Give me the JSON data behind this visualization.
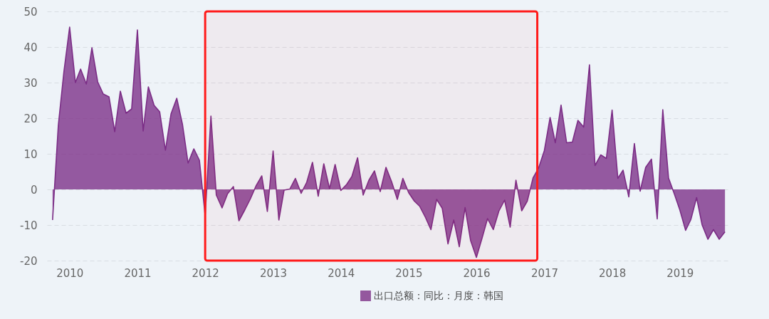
{
  "chart_data": {
    "type": "area",
    "x": [
      "2009-10",
      "2009-11",
      "2009-12",
      "2010-01",
      "2010-02",
      "2010-03",
      "2010-04",
      "2010-05",
      "2010-06",
      "2010-07",
      "2010-08",
      "2010-09",
      "2010-10",
      "2010-11",
      "2010-12",
      "2011-01",
      "2011-02",
      "2011-03",
      "2011-04",
      "2011-05",
      "2011-06",
      "2011-07",
      "2011-08",
      "2011-09",
      "2011-10",
      "2011-11",
      "2011-12",
      "2012-01",
      "2012-02",
      "2012-03",
      "2012-04",
      "2012-05",
      "2012-06",
      "2012-07",
      "2012-08",
      "2012-09",
      "2012-10",
      "2012-11",
      "2012-12",
      "2013-01",
      "2013-02",
      "2013-03",
      "2013-04",
      "2013-05",
      "2013-06",
      "2013-07",
      "2013-08",
      "2013-09",
      "2013-10",
      "2013-11",
      "2013-12",
      "2014-01",
      "2014-02",
      "2014-03",
      "2014-04",
      "2014-05",
      "2014-06",
      "2014-07",
      "2014-08",
      "2014-09",
      "2014-10",
      "2014-11",
      "2014-12",
      "2015-01",
      "2015-02",
      "2015-03",
      "2015-04",
      "2015-05",
      "2015-06",
      "2015-07",
      "2015-08",
      "2015-09",
      "2015-10",
      "2015-11",
      "2015-12",
      "2016-01",
      "2016-02",
      "2016-03",
      "2016-04",
      "2016-05",
      "2016-06",
      "2016-07",
      "2016-08",
      "2016-09",
      "2016-10",
      "2016-11",
      "2016-12",
      "2017-01",
      "2017-02",
      "2017-03",
      "2017-04",
      "2017-05",
      "2017-06",
      "2017-07",
      "2017-08",
      "2017-09",
      "2017-10",
      "2017-11",
      "2017-12",
      "2018-01",
      "2018-02",
      "2018-03",
      "2018-04",
      "2018-05",
      "2018-06",
      "2018-07",
      "2018-08",
      "2018-09",
      "2018-10",
      "2018-11",
      "2018-12",
      "2019-01",
      "2019-02",
      "2019-03",
      "2019-04",
      "2019-05",
      "2019-06",
      "2019-07",
      "2019-08",
      "2019-09"
    ],
    "series": [
      {
        "name": "出口总额：同比：月度：韩国",
        "color": "#7b2d86",
        "values": [
          -8.6,
          18.0,
          33.0,
          45.6,
          30.0,
          33.8,
          29.6,
          39.8,
          30.2,
          26.8,
          26.0,
          16.2,
          27.6,
          21.4,
          22.6,
          44.8,
          16.4,
          28.8,
          23.6,
          21.8,
          11.0,
          21.2,
          25.6,
          18.2,
          7.4,
          11.4,
          8.2,
          -7.4,
          20.6,
          -1.6,
          -5.2,
          -1.2,
          0.8,
          -8.8,
          -5.8,
          -2.6,
          1.0,
          3.8,
          -6.2,
          10.8,
          -8.6,
          -0.2,
          0.1,
          3.1,
          -1.1,
          2.0,
          7.6,
          -1.9,
          7.2,
          0.2,
          7.0,
          -0.3,
          1.4,
          3.6,
          8.9,
          -1.6,
          2.6,
          5.2,
          -0.6,
          6.2,
          2.2,
          -2.8,
          3.1,
          -0.9,
          -3.3,
          -4.7,
          -7.8,
          -11.3,
          -2.8,
          -5.3,
          -15.3,
          -8.6,
          -16.1,
          -5.1,
          -14.4,
          -19.1,
          -13.6,
          -8.2,
          -11.3,
          -6.1,
          -3.0,
          -10.6,
          2.6,
          -6.0,
          -3.3,
          3.2,
          6.0,
          10.9,
          20.2,
          13.1,
          23.7,
          13.1,
          13.3,
          19.4,
          17.5,
          35.0,
          6.7,
          9.7,
          8.7,
          22.3,
          3.1,
          5.4,
          -2.1,
          12.9,
          -0.5,
          6.2,
          8.5,
          -8.3,
          22.4,
          3.2,
          -1.1,
          -5.8,
          -11.5,
          -8.5,
          -2.3,
          -10.0,
          -14.0,
          -11.3,
          -14.0,
          -11.9
        ]
      }
    ],
    "xlim": [
      "2009-09",
      "2019-10"
    ],
    "xticks": [
      "2010",
      "2011",
      "2012",
      "2013",
      "2014",
      "2015",
      "2016",
      "2017",
      "2018",
      "2019"
    ],
    "ylim": [
      -20,
      50
    ],
    "yticks": [
      -20,
      -10,
      0,
      10,
      20,
      30,
      40,
      50
    ],
    "grid": "y",
    "legend": "bottom",
    "bands": [
      {
        "axis": "x",
        "from": "2012-01",
        "to": "2016-11-24",
        "color": "#ff1a1a"
      }
    ]
  }
}
